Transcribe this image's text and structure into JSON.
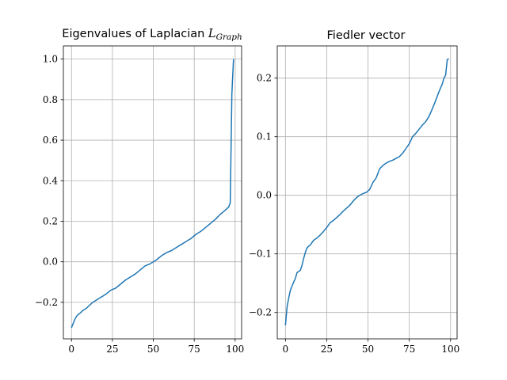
{
  "chart_data": [
    {
      "type": "line",
      "title": "Eigenvalues of Laplacian ",
      "title_math_base": "L",
      "title_math_sub": "Graph",
      "xlim": [
        -4.95,
        103.95
      ],
      "ylim": [
        -0.38,
        1.065
      ],
      "xticks": [
        0,
        25,
        50,
        75,
        100
      ],
      "xtick_labels": [
        "0",
        "25",
        "50",
        "75",
        "100"
      ],
      "yticks": [
        -0.2,
        0.0,
        0.2,
        0.4,
        0.6,
        0.8,
        1.0
      ],
      "ytick_labels": [
        "−0.2",
        "0.0",
        "0.2",
        "0.4",
        "0.6",
        "0.8",
        "1.0"
      ],
      "grid": true,
      "color": "#1f77b4",
      "series": [
        {
          "x": [
            0,
            1,
            2,
            3,
            4,
            5,
            7,
            9,
            11,
            13,
            15,
            17,
            19,
            21,
            24,
            27,
            30,
            33,
            36,
            39,
            42,
            45,
            48,
            50,
            52,
            55,
            58,
            61,
            64,
            67,
            70,
            73,
            76,
            79,
            82,
            85,
            88,
            91,
            94,
            96,
            97,
            98,
            99
          ],
          "y": [
            -0.325,
            -0.305,
            -0.285,
            -0.27,
            -0.26,
            -0.255,
            -0.24,
            -0.23,
            -0.215,
            -0.2,
            -0.19,
            -0.18,
            -0.17,
            -0.16,
            -0.14,
            -0.13,
            -0.11,
            -0.09,
            -0.075,
            -0.06,
            -0.04,
            -0.02,
            -0.01,
            0.0,
            0.01,
            0.03,
            0.045,
            0.055,
            0.07,
            0.085,
            0.1,
            0.115,
            0.135,
            0.15,
            0.17,
            0.19,
            0.21,
            0.235,
            0.255,
            0.27,
            0.29,
            0.83,
            1.0
          ]
        }
      ]
    },
    {
      "type": "line",
      "title": "Fiedler vector",
      "xlim": [
        -4.95,
        103.95
      ],
      "ylim": [
        -0.245,
        0.255
      ],
      "xticks": [
        0,
        25,
        50,
        75,
        100
      ],
      "xtick_labels": [
        "0",
        "25",
        "50",
        "75",
        "100"
      ],
      "yticks": [
        -0.2,
        -0.1,
        0.0,
        0.1,
        0.2
      ],
      "ytick_labels": [
        "−0.2",
        "−0.1",
        "0.0",
        "0.1",
        "0.2"
      ],
      "grid": true,
      "color": "#1f77b4",
      "series": [
        {
          "x": [
            0,
            1,
            2,
            3,
            4,
            5,
            6,
            7,
            8,
            9,
            10,
            11,
            12,
            13,
            14,
            15,
            17,
            19,
            21,
            23,
            25,
            27,
            29,
            31,
            33,
            35,
            37,
            39,
            41,
            43,
            45,
            47,
            49,
            51,
            53,
            55,
            57,
            59,
            61,
            63,
            65,
            67,
            69,
            71,
            73,
            75,
            77,
            79,
            81,
            83,
            85,
            87,
            89,
            91,
            93,
            95,
            96,
            97,
            98,
            99
          ],
          "y": [
            -0.222,
            -0.19,
            -0.175,
            -0.162,
            -0.155,
            -0.148,
            -0.142,
            -0.132,
            -0.13,
            -0.128,
            -0.12,
            -0.108,
            -0.098,
            -0.09,
            -0.087,
            -0.085,
            -0.077,
            -0.073,
            -0.068,
            -0.062,
            -0.055,
            -0.047,
            -0.043,
            -0.038,
            -0.033,
            -0.027,
            -0.022,
            -0.017,
            -0.01,
            -0.004,
            0.0,
            0.003,
            0.005,
            0.01,
            0.022,
            0.03,
            0.045,
            0.051,
            0.055,
            0.058,
            0.06,
            0.063,
            0.066,
            0.072,
            0.08,
            0.088,
            0.1,
            0.106,
            0.113,
            0.12,
            0.126,
            0.135,
            0.148,
            0.162,
            0.177,
            0.19,
            0.2,
            0.205,
            0.232,
            0.233
          ]
        }
      ]
    }
  ]
}
